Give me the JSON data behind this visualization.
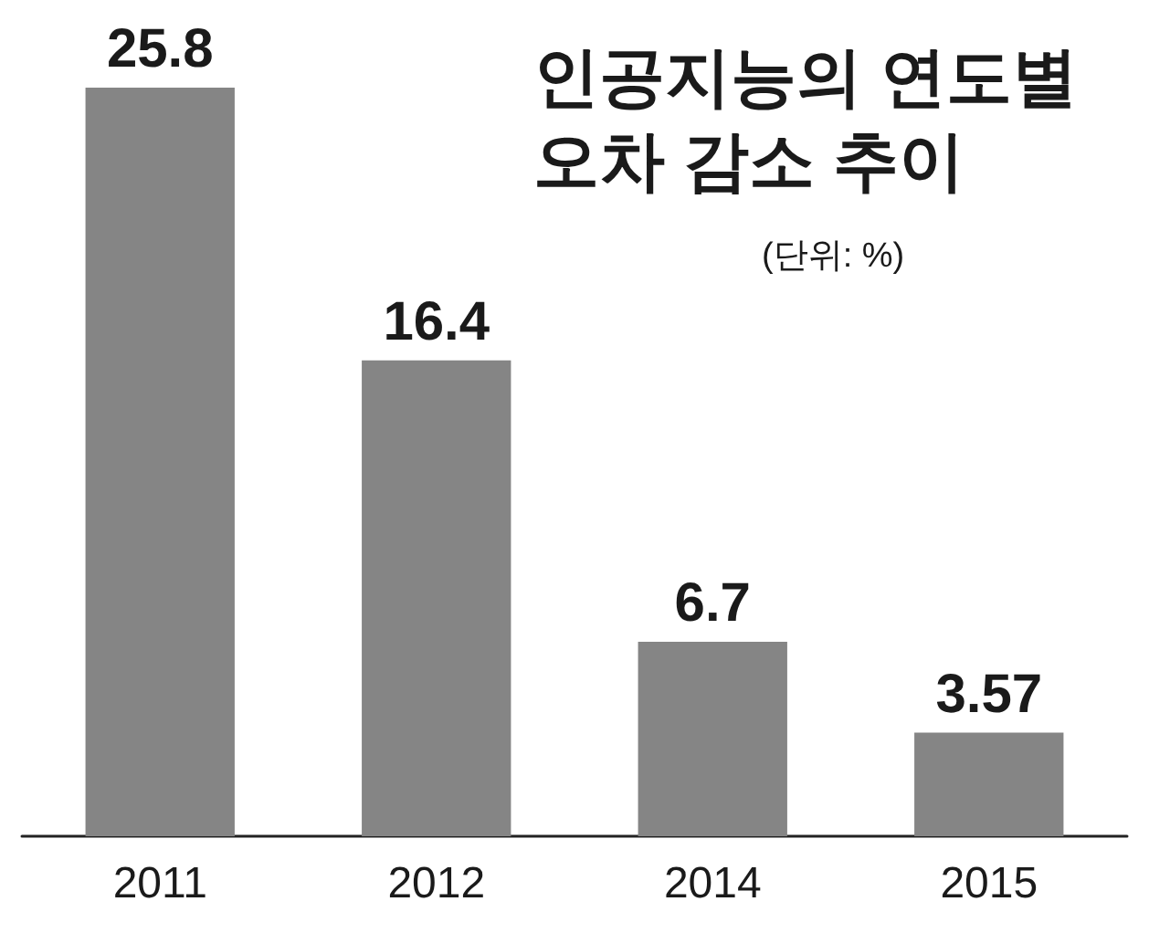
{
  "chart_data": {
    "type": "bar",
    "title": "인공지능의 연도별\n오차 감소 추이",
    "subtitle": "(단위: %)",
    "categories": [
      "2011",
      "2012",
      "2014",
      "2015"
    ],
    "values": [
      25.8,
      16.4,
      6.7,
      3.57
    ],
    "color": "#858585",
    "data_labels": true
  }
}
